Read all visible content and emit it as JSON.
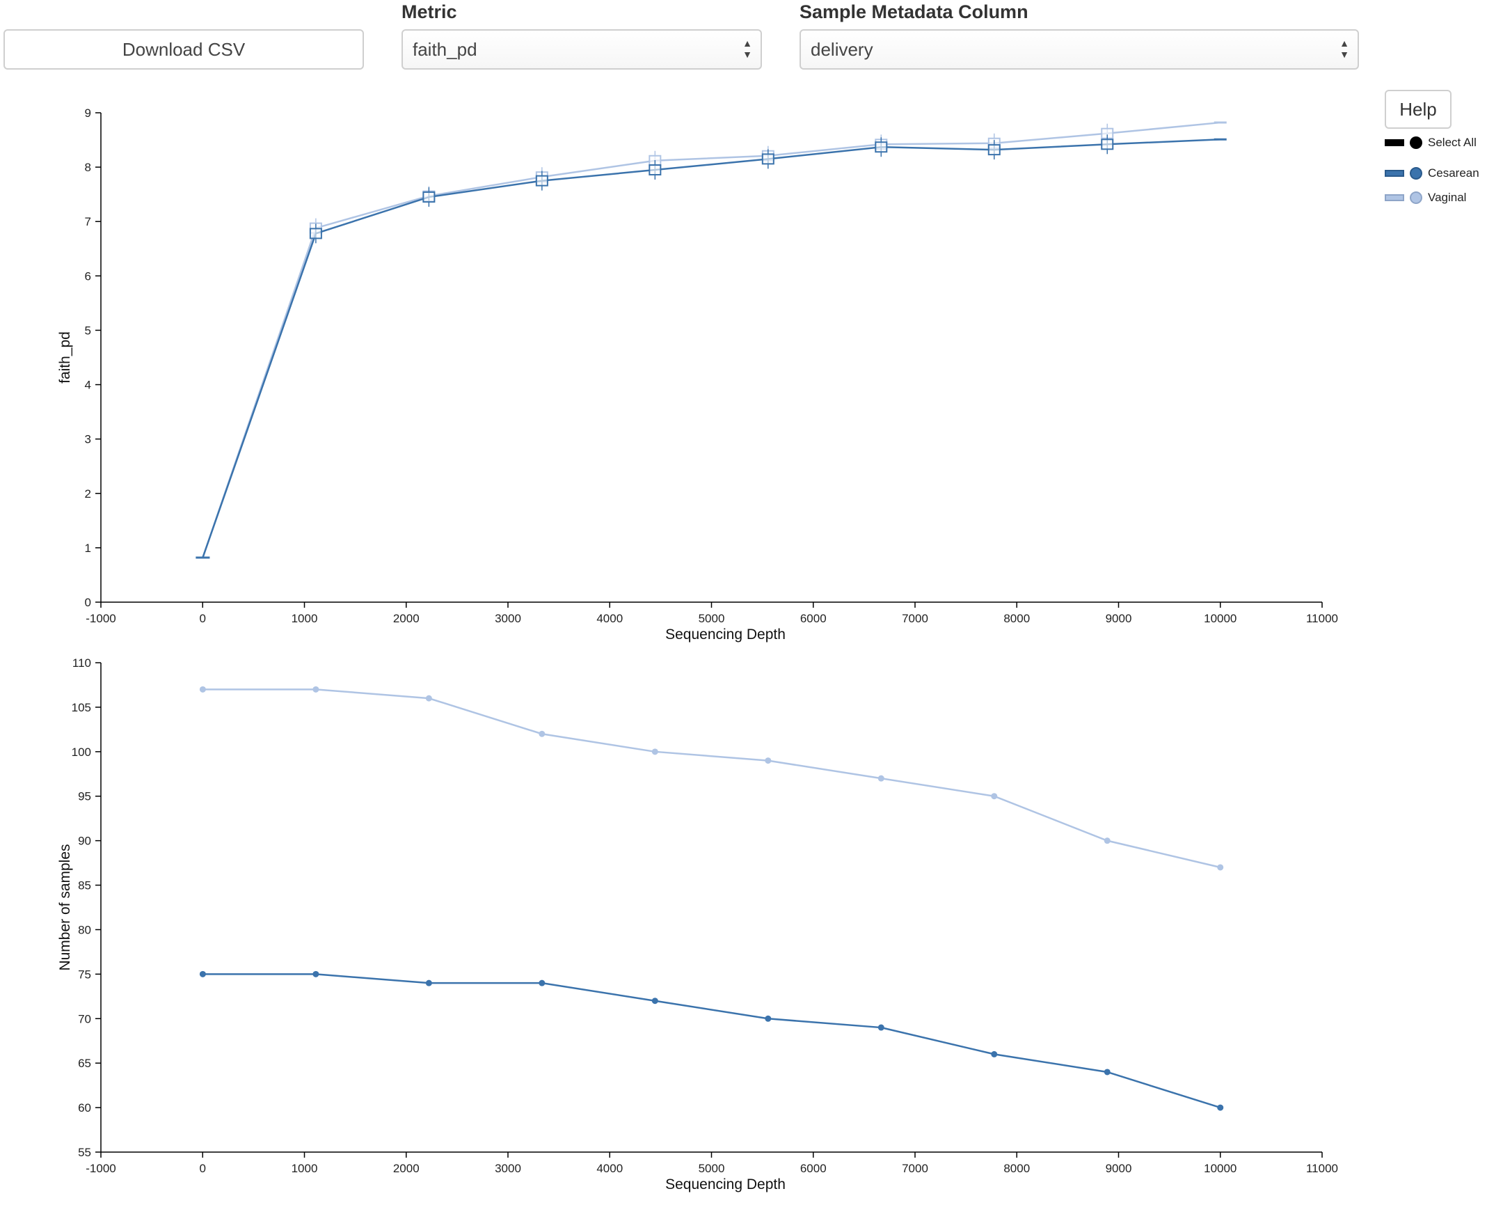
{
  "controls": {
    "download_label": "Download CSV",
    "metric_label": "Metric",
    "metric_value": "faith_pd",
    "metadata_label": "Sample Metadata Column",
    "metadata_value": "delivery",
    "help_label": "Help",
    "select_arrows": "▲▼"
  },
  "legend": {
    "select_all": "Select All",
    "items": [
      {
        "name": "Cesarean",
        "color": "#3b73ac"
      },
      {
        "name": "Vaginal",
        "color": "#afc4e4"
      }
    ]
  },
  "chart_data": [
    {
      "type": "line",
      "subtype": "boxplot-line",
      "xlabel": "Sequencing Depth",
      "ylabel": "faith_pd",
      "xlim": [
        -1000,
        11000
      ],
      "ylim": [
        0,
        9
      ],
      "xticks": [
        -1000,
        0,
        1000,
        2000,
        3000,
        4000,
        5000,
        6000,
        7000,
        8000,
        9000,
        10000,
        11000
      ],
      "yticks": [
        0,
        1,
        2,
        3,
        4,
        5,
        6,
        7,
        8,
        9
      ],
      "x": [
        1,
        1112,
        2223,
        3334,
        4445,
        5556,
        6667,
        7778,
        8889,
        10000
      ],
      "series": [
        {
          "name": "Cesarean",
          "color": "#3b73ac",
          "values": [
            0.82,
            6.78,
            7.45,
            7.75,
            7.95,
            8.15,
            8.37,
            8.32,
            8.42,
            8.51
          ]
        },
        {
          "name": "Vaginal",
          "color": "#afc4e4",
          "values": [
            0.82,
            6.88,
            7.47,
            7.82,
            8.12,
            8.21,
            8.42,
            8.44,
            8.62,
            8.82
          ]
        }
      ]
    },
    {
      "type": "line",
      "xlabel": "Sequencing Depth",
      "ylabel": "Number of samples",
      "xlim": [
        -1000,
        11000
      ],
      "ylim": [
        55,
        110
      ],
      "xticks": [
        -1000,
        0,
        1000,
        2000,
        3000,
        4000,
        5000,
        6000,
        7000,
        8000,
        9000,
        10000,
        11000
      ],
      "yticks": [
        55,
        60,
        65,
        70,
        75,
        80,
        85,
        90,
        95,
        100,
        105,
        110
      ],
      "x": [
        1,
        1112,
        2223,
        3334,
        4445,
        5556,
        6667,
        7778,
        8889,
        10000
      ],
      "series": [
        {
          "name": "Cesarean",
          "color": "#3b73ac",
          "values": [
            75,
            75,
            74,
            74,
            72,
            70,
            69,
            66,
            64,
            60
          ]
        },
        {
          "name": "Vaginal",
          "color": "#afc4e4",
          "values": [
            107,
            107,
            106,
            102,
            100,
            99,
            97,
            95,
            90,
            87
          ]
        }
      ]
    }
  ]
}
